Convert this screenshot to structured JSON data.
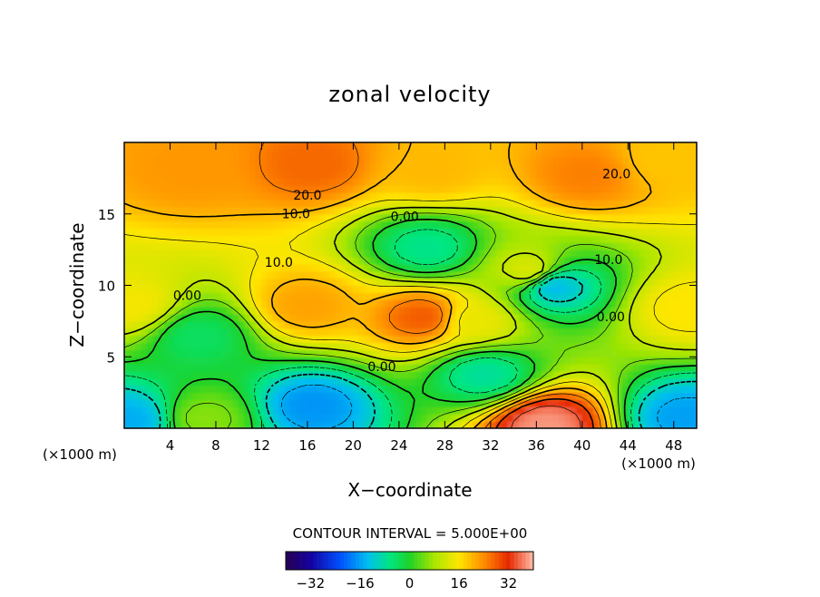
{
  "chart_data": {
    "type": "heatmap",
    "title": "zonal velocity",
    "xlabel": "X−coordinate",
    "ylabel": "Z−coordinate",
    "x_unit_left": "(×1000 m)",
    "x_unit_right": "(×1000 m)",
    "xlim": [
      0,
      50
    ],
    "ylim": [
      0,
      20
    ],
    "x_ticks": [
      4,
      8,
      12,
      16,
      20,
      24,
      28,
      32,
      36,
      40,
      44,
      48
    ],
    "y_ticks": [
      5,
      10,
      15
    ],
    "contour_interval_text": "CONTOUR INTERVAL = 5.000E+00",
    "contour_labels": [
      {
        "text": "20.0",
        "x": 16.0,
        "y": 16.0
      },
      {
        "text": "20.0",
        "x": 43.0,
        "y": 17.5
      },
      {
        "text": "10.0",
        "x": 15.0,
        "y": 14.7
      },
      {
        "text": "0.00",
        "x": 24.5,
        "y": 14.5
      },
      {
        "text": "10.0",
        "x": 13.5,
        "y": 11.3
      },
      {
        "text": "0.00",
        "x": 5.5,
        "y": 9.0
      },
      {
        "text": "10.0",
        "x": 42.3,
        "y": 11.5
      },
      {
        "text": "0.00",
        "x": 42.5,
        "y": 7.5
      },
      {
        "text": "0.00",
        "x": 22.5,
        "y": 4.0
      }
    ],
    "colorbar": {
      "range": [
        -40,
        40
      ],
      "ticks": [
        -32,
        -16,
        0,
        16,
        32
      ],
      "tick_labels": [
        "−32",
        "−16",
        "0",
        "16",
        "32"
      ]
    },
    "field_features": [
      {
        "x": 16.5,
        "y": 18.5,
        "value": 27
      },
      {
        "x": 6.0,
        "y": 18.2,
        "value": 23
      },
      {
        "x": 27.0,
        "y": 18.0,
        "value": 20
      },
      {
        "x": 40.5,
        "y": 17.8,
        "value": 25
      },
      {
        "x": 47.0,
        "y": 18.8,
        "value": 19
      },
      {
        "x": 16.0,
        "y": 8.6,
        "value": 22
      },
      {
        "x": 26.2,
        "y": 7.8,
        "value": 28
      },
      {
        "x": 30.5,
        "y": 7.5,
        "value": 14
      },
      {
        "x": 0.8,
        "y": 8.6,
        "value": 15
      },
      {
        "x": 49.2,
        "y": 8.4,
        "value": 16
      },
      {
        "x": 35.5,
        "y": 11.0,
        "value": 13
      },
      {
        "x": 37.5,
        "y": 10.0,
        "value": -14
      },
      {
        "x": 16.5,
        "y": 1.6,
        "value": -17
      },
      {
        "x": 0.6,
        "y": 0.6,
        "value": -15
      },
      {
        "x": 49.0,
        "y": 0.8,
        "value": -16
      },
      {
        "x": 31.5,
        "y": 3.8,
        "value": -8
      },
      {
        "x": 36.8,
        "y": 0.3,
        "value": 38
      },
      {
        "x": 6.5,
        "y": 6.5,
        "value": -4
      },
      {
        "x": 7.0,
        "y": 0.7,
        "value": 6
      },
      {
        "x": 26.5,
        "y": 12.6,
        "value": -7
      }
    ]
  }
}
